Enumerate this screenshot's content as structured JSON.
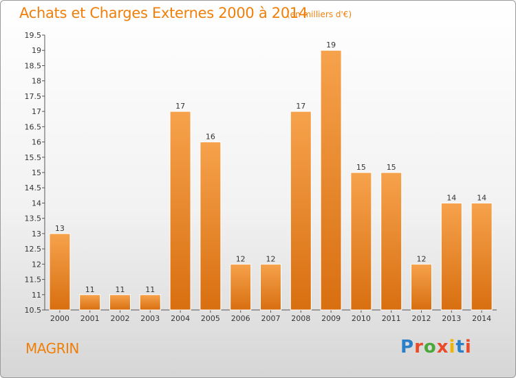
{
  "header": {
    "title": "Achats et Charges Externes 2000 à 2014",
    "subtitle": "(en milliers d'€)"
  },
  "footer": {
    "commune": "MAGRIN",
    "logo_text": "Proxiti"
  },
  "colors": {
    "bar_top": "#f6a24c",
    "bar_bottom": "#d86f10",
    "text_accent": "#f07f0a"
  },
  "chart_data": {
    "type": "bar",
    "title": "Achats et Charges Externes 2000 à 2014",
    "subtitle": "(en milliers d'€)",
    "xlabel": "",
    "ylabel": "",
    "categories": [
      "2000",
      "2001",
      "2002",
      "2003",
      "2004",
      "2005",
      "2006",
      "2007",
      "2008",
      "2009",
      "2010",
      "2011",
      "2012",
      "2013",
      "2014"
    ],
    "values": [
      13,
      11,
      11,
      11,
      17,
      16,
      12,
      12,
      17,
      19,
      15,
      15,
      12,
      14,
      14
    ],
    "ylim": [
      10.5,
      19.5
    ],
    "yticks": [
      10.5,
      11,
      11.5,
      12,
      12.5,
      13,
      13.5,
      14,
      14.5,
      15,
      15.5,
      16,
      16.5,
      17,
      17.5,
      18,
      18.5,
      19,
      19.5
    ],
    "grid": false,
    "legend": "none"
  }
}
